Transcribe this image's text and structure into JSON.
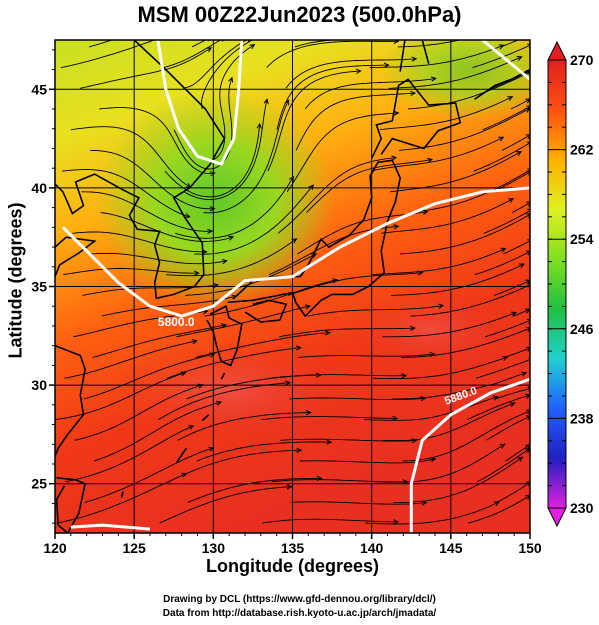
{
  "title": "MSM 00Z22Jun2023 (500.0hPa)",
  "xlabel": "Longitude (degrees)",
  "ylabel": "Latitude  (degrees)",
  "credit_line1": "Drawing by DCL (https://www.gfd-dennou.org/library/dcl/)",
  "credit_line2": "Data from http://database.rish.kyoto-u.ac.jp/arch/jmadata/",
  "contour_labels": [
    "5800.0",
    "5880.0"
  ],
  "chart_data": {
    "type": "heatmap",
    "x_ticks": [
      120,
      125,
      130,
      135,
      140,
      145,
      150
    ],
    "y_ticks": [
      25,
      30,
      35,
      40,
      45
    ],
    "xlim": [
      120,
      150
    ],
    "ylim": [
      22.5,
      47.5
    ],
    "colorbar": {
      "ticks": [
        230,
        238,
        246,
        254,
        262,
        270
      ],
      "range": [
        230,
        270
      ],
      "stops": [
        "#e020e0",
        "#2020c0",
        "#2060ff",
        "#20d0d0",
        "#20c040",
        "#80e020",
        "#e0f020",
        "#ffb000",
        "#ff5010",
        "#e02020"
      ]
    },
    "contours": [
      {
        "label": "5800.0",
        "points": [
          [
            120.5,
            38.0
          ],
          [
            122,
            36.8
          ],
          [
            124,
            35.2
          ],
          [
            126,
            34.0
          ],
          [
            128,
            33.5
          ],
          [
            130,
            34.0
          ],
          [
            132,
            35.3
          ],
          [
            135,
            35.5
          ],
          [
            138,
            37.0
          ],
          [
            141,
            38.2
          ],
          [
            144,
            39.2
          ],
          [
            147,
            39.8
          ],
          [
            150,
            40.0
          ]
        ]
      },
      {
        "label": "5880.0",
        "points": [
          [
            121,
            22.8
          ],
          [
            123,
            22.9
          ],
          [
            126,
            22.7
          ]
        ]
      },
      {
        "label": "5880.0",
        "points": [
          [
            142.5,
            22.5
          ],
          [
            142.5,
            25.0
          ],
          [
            143.2,
            27.2
          ],
          [
            145,
            28.5
          ],
          [
            147.5,
            29.6
          ],
          [
            150,
            30.3
          ]
        ]
      },
      {
        "label": "",
        "points": [
          [
            126.5,
            47.5
          ],
          [
            127,
            45.0
          ],
          [
            127.8,
            43.0
          ],
          [
            129,
            41.6
          ],
          [
            130.5,
            41.2
          ],
          [
            131.3,
            42.5
          ],
          [
            131.6,
            45.0
          ],
          [
            131.8,
            47.5
          ]
        ]
      },
      {
        "label": "",
        "points": [
          [
            147.0,
            47.5
          ],
          [
            148.5,
            46.5
          ],
          [
            150,
            45.5
          ]
        ]
      }
    ]
  }
}
